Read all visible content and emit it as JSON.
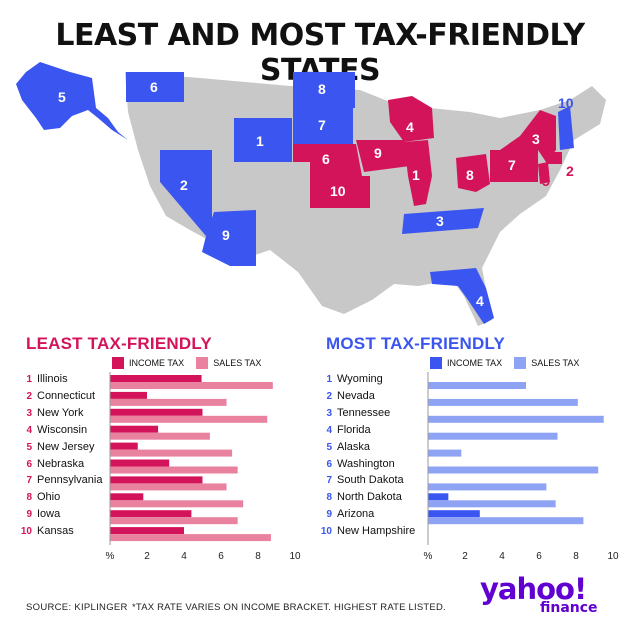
{
  "title": "LEAST AND MOST TAX-FRIENDLY STATES",
  "colors": {
    "least": "#d4145a",
    "least_sales": "#e8829f",
    "most": "#3b55f0",
    "most_sales": "#8fa3f4",
    "map_gray": "#c8c8c8"
  },
  "map_labels": [
    {
      "name": "Alaska",
      "rank": "5",
      "group": "most"
    },
    {
      "name": "Washington",
      "rank": "6",
      "group": "most"
    },
    {
      "name": "North Dakota",
      "rank": "8",
      "group": "most"
    },
    {
      "name": "South Dakota",
      "rank": "7",
      "group": "most"
    },
    {
      "name": "Wyoming",
      "rank": "1",
      "group": "most"
    },
    {
      "name": "Nevada",
      "rank": "2",
      "group": "most"
    },
    {
      "name": "Arizona",
      "rank": "9",
      "group": "most"
    },
    {
      "name": "Tennessee",
      "rank": "3",
      "group": "most"
    },
    {
      "name": "Florida",
      "rank": "4",
      "group": "most"
    },
    {
      "name": "New Hampshire",
      "rank": "10",
      "group": "most"
    },
    {
      "name": "Wisconsin",
      "rank": "4",
      "group": "least"
    },
    {
      "name": "Nebraska",
      "rank": "6",
      "group": "least"
    },
    {
      "name": "Iowa",
      "rank": "9",
      "group": "least"
    },
    {
      "name": "Illinois",
      "rank": "1",
      "group": "least"
    },
    {
      "name": "Kansas",
      "rank": "10",
      "group": "least"
    },
    {
      "name": "Ohio",
      "rank": "8",
      "group": "least"
    },
    {
      "name": "Pennsylvania",
      "rank": "7",
      "group": "least"
    },
    {
      "name": "New York",
      "rank": "3",
      "group": "least"
    },
    {
      "name": "New Jersey",
      "rank": "5",
      "group": "least"
    },
    {
      "name": "Connecticut",
      "rank": "2",
      "group": "least"
    }
  ],
  "chart_data": [
    {
      "type": "bar",
      "title": "LEAST TAX-FRIENDLY",
      "legend": [
        "INCOME TAX",
        "SALES TAX"
      ],
      "xlabel": "%",
      "xlim": [
        0,
        10
      ],
      "ticks": [
        "%",
        "2",
        "4",
        "6",
        "8",
        "10"
      ],
      "ranks": [
        "1",
        "2",
        "3",
        "4",
        "5",
        "6",
        "7",
        "8",
        "9",
        "10"
      ],
      "categories": [
        "Illinois",
        "Connecticut",
        "New York",
        "Wisconsin",
        "New Jersey",
        "Nebraska",
        "Pennsylvania",
        "Ohio",
        "Iowa",
        "Kansas"
      ],
      "series": [
        {
          "name": "INCOME TAX",
          "values": [
            4.95,
            2.0,
            5.0,
            2.6,
            1.5,
            3.2,
            5.0,
            1.8,
            4.4,
            4.0
          ]
        },
        {
          "name": "SALES TAX",
          "values": [
            8.8,
            6.3,
            8.5,
            5.4,
            6.6,
            6.9,
            6.3,
            7.2,
            6.9,
            8.7
          ]
        }
      ]
    },
    {
      "type": "bar",
      "title": "MOST TAX-FRIENDLY",
      "legend": [
        "INCOME TAX",
        "SALES TAX"
      ],
      "xlabel": "%",
      "xlim": [
        0,
        10
      ],
      "ticks": [
        "%",
        "2",
        "4",
        "6",
        "8",
        "10"
      ],
      "ranks": [
        "1",
        "2",
        "3",
        "4",
        "5",
        "6",
        "7",
        "8",
        "9",
        "10"
      ],
      "categories": [
        "Wyoming",
        "Nevada",
        "Tennessee",
        "Florida",
        "Alaska",
        "Washington",
        "South Dakota",
        "North Dakota",
        "Arizona",
        "New Hampshire"
      ],
      "series": [
        {
          "name": "INCOME TAX",
          "values": [
            0,
            0,
            0,
            0,
            0,
            0,
            0,
            1.1,
            2.8,
            0
          ]
        },
        {
          "name": "SALES TAX",
          "values": [
            5.3,
            8.1,
            9.5,
            7.0,
            1.8,
            9.2,
            6.4,
            6.9,
            8.4,
            0
          ]
        }
      ]
    }
  ],
  "footer": {
    "source": "SOURCE: KIPLINGER",
    "note": "*TAX RATE VARIES ON INCOME BRACKET. HIGHEST RATE LISTED."
  },
  "logo": {
    "word": "yahoo!",
    "sub": "finance"
  }
}
